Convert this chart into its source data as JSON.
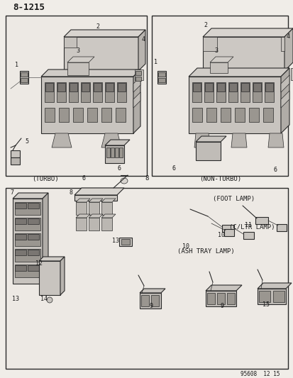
{
  "title": "8−1215",
  "bg": "#f0ede8",
  "fg": "#2a2a2a",
  "labels": {
    "turbo": "(TURBO)",
    "non_turbo": "(NON-TURBO)",
    "foot_lamp": "(FOOT LAMP)",
    "ash_tray_lamp": "(ASH TRAY LAMP)",
    "c_ltr_lamp": "(C/LTR LAMP)",
    "footer": "95608  12 15"
  }
}
